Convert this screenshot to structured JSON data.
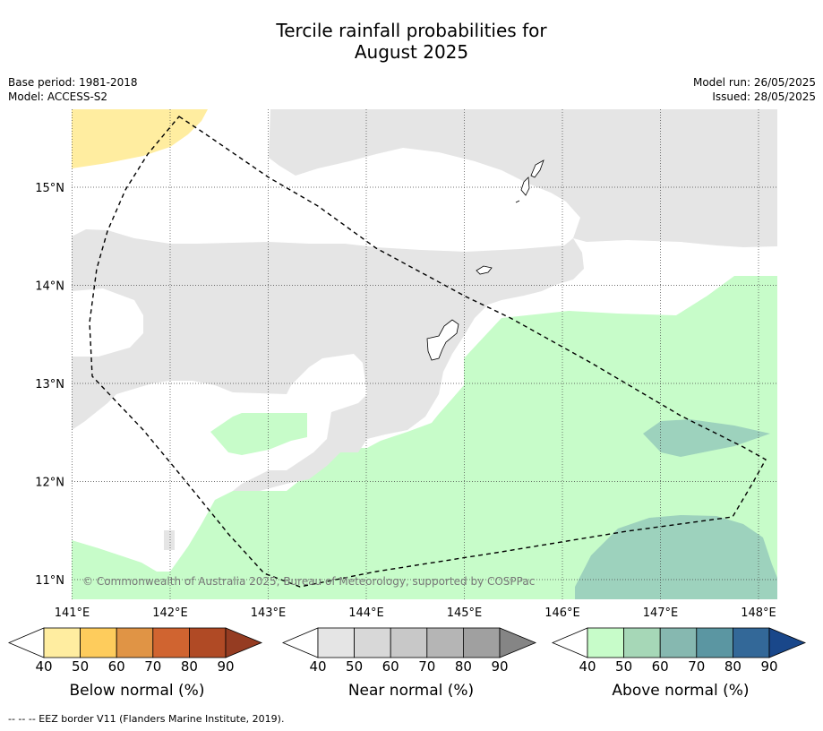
{
  "title": {
    "line1": "Tercile rainfall probabilities for",
    "line2": "August 2025"
  },
  "meta_left": {
    "base_period": "Base period: 1981-2018",
    "model": "Model: ACCESS-S2"
  },
  "meta_right": {
    "model_run": "Model run: 26/05/2025",
    "issued": "Issued: 28/05/2025"
  },
  "map": {
    "lon_labels": [
      "141°E",
      "142°E",
      "143°E",
      "144°E",
      "145°E",
      "146°E",
      "147°E",
      "148°E"
    ],
    "lat_labels": [
      "15°N",
      "14°N",
      "13°N",
      "12°N",
      "11°N"
    ],
    "lon_values": [
      141,
      142,
      143,
      144,
      145,
      146,
      147,
      148
    ],
    "lat_values": [
      15,
      14,
      13,
      12,
      11
    ],
    "copyright": "© Commonwealth of Australia 2025, Bureau of Meteorology, supported by COSPPac",
    "colors": {
      "below_50": "#ffeda0",
      "near_50": "#e5e5e5",
      "above_50": "#c7fcc9",
      "above_60": "#9dd2bd",
      "eez_border": "#000000"
    }
  },
  "colorbars": {
    "ticks": [
      "40",
      "50",
      "60",
      "70",
      "80",
      "90"
    ],
    "below": {
      "label": "Below normal (%)",
      "colors": [
        "#ffeda0",
        "#fecc5c",
        "#e09445",
        "#d06430",
        "#b04a25",
        "#953c22"
      ]
    },
    "near": {
      "label": "Near normal (%)",
      "colors": [
        "#e5e5e5",
        "#d8d8d8",
        "#c8c8c8",
        "#b5b5b5",
        "#a0a0a0",
        "#858585"
      ]
    },
    "above": {
      "label": "Above normal (%)",
      "colors": [
        "#c7fcc9",
        "#a6d7b7",
        "#86b8b0",
        "#5b96a2",
        "#336898",
        "#19478a"
      ]
    }
  },
  "footer": "--  --  -- EEZ border V11 (Flanders Marine Institute, 2019)."
}
